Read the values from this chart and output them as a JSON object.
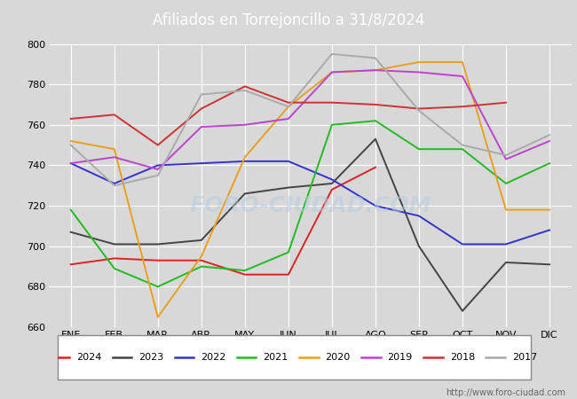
{
  "title": "Afiliados en Torrejoncillo a 31/8/2024",
  "months": [
    "ENE",
    "FEB",
    "MAR",
    "ABR",
    "MAY",
    "JUN",
    "JUL",
    "AGO",
    "SEP",
    "OCT",
    "NOV",
    "DIC"
  ],
  "ylim": [
    660,
    800
  ],
  "yticks": [
    660,
    680,
    700,
    720,
    740,
    760,
    780,
    800
  ],
  "series": {
    "2024": {
      "color": "#dd2222",
      "values": [
        691,
        694,
        693,
        693,
        686,
        686,
        728,
        739,
        null,
        null,
        null,
        null
      ]
    },
    "2023": {
      "color": "#444444",
      "values": [
        707,
        701,
        701,
        703,
        726,
        729,
        731,
        753,
        700,
        668,
        692,
        691
      ]
    },
    "2022": {
      "color": "#3333cc",
      "values": [
        741,
        731,
        740,
        741,
        742,
        742,
        733,
        720,
        715,
        701,
        701,
        708
      ]
    },
    "2021": {
      "color": "#22bb22",
      "values": [
        718,
        689,
        680,
        690,
        688,
        697,
        760,
        762,
        748,
        748,
        731,
        741
      ]
    },
    "2020": {
      "color": "#e8a020",
      "values": [
        752,
        748,
        665,
        695,
        744,
        769,
        786,
        787,
        791,
        791,
        718,
        718
      ]
    },
    "2019": {
      "color": "#bb44cc",
      "values": [
        741,
        744,
        738,
        759,
        760,
        763,
        786,
        787,
        786,
        784,
        743,
        752
      ]
    },
    "2018": {
      "color": "#cc3333",
      "values": [
        763,
        765,
        750,
        768,
        779,
        771,
        771,
        770,
        768,
        769,
        771,
        null
      ]
    },
    "2017": {
      "color": "#aaaaaa",
      "values": [
        750,
        730,
        735,
        775,
        777,
        769,
        795,
        793,
        767,
        750,
        745,
        755
      ]
    }
  },
  "legend_order": [
    "2024",
    "2023",
    "2022",
    "2021",
    "2020",
    "2019",
    "2018",
    "2017"
  ],
  "watermark": "FORO-CIUDAD.COM",
  "footer_text": "http://www.foro-ciudad.com",
  "header_color": "#5599dd",
  "title_color": "#ffffff",
  "bg_color": "#d8d8d8",
  "plot_bg": "#d8d8d8",
  "grid_color": "#ffffff"
}
